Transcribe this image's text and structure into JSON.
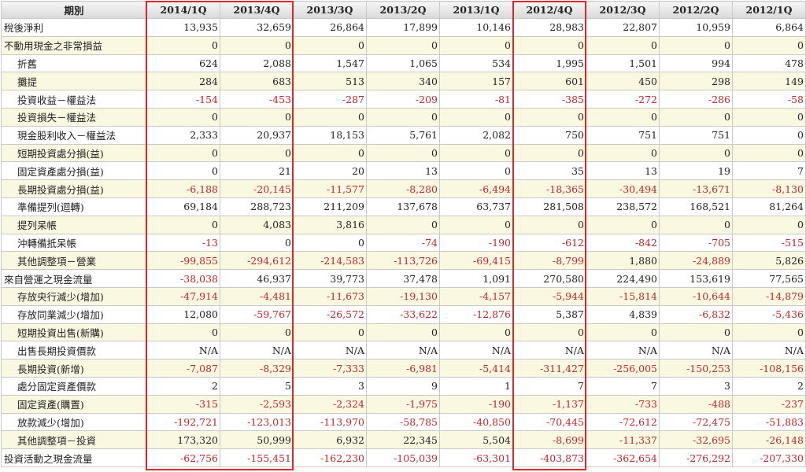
{
  "header": {
    "label": "期別",
    "periods": [
      "2014/1Q",
      "2013/4Q",
      "2013/3Q",
      "2013/2Q",
      "2013/1Q",
      "2012/4Q",
      "2012/3Q",
      "2012/2Q",
      "2012/1Q"
    ]
  },
  "rows": [
    {
      "label": "稅後淨利",
      "indent": false,
      "values": [
        "13,935",
        "32,659",
        "26,864",
        "17,899",
        "10,146",
        "28,983",
        "22,807",
        "10,959",
        "6,864"
      ]
    },
    {
      "label": "不動用現金之非常損益",
      "indent": false,
      "values": [
        "0",
        "0",
        "0",
        "0",
        "0",
        "0",
        "0",
        "0",
        "0"
      ]
    },
    {
      "label": "折舊",
      "indent": true,
      "values": [
        "624",
        "2,088",
        "1,547",
        "1,065",
        "534",
        "1,995",
        "1,501",
        "994",
        "478"
      ]
    },
    {
      "label": "攤提",
      "indent": true,
      "values": [
        "284",
        "683",
        "513",
        "340",
        "157",
        "601",
        "450",
        "298",
        "149"
      ]
    },
    {
      "label": "投資收益－權益法",
      "indent": true,
      "values": [
        "-154",
        "-453",
        "-287",
        "-209",
        "-81",
        "-385",
        "-272",
        "-286",
        "-58"
      ]
    },
    {
      "label": "投資損失－權益法",
      "indent": true,
      "values": [
        "0",
        "0",
        "0",
        "0",
        "0",
        "0",
        "0",
        "0",
        "0"
      ]
    },
    {
      "label": "現金股利收入－權益法",
      "indent": true,
      "values": [
        "2,333",
        "20,937",
        "18,153",
        "5,761",
        "2,082",
        "750",
        "751",
        "751",
        "0"
      ]
    },
    {
      "label": "短期投資處分損(益)",
      "indent": true,
      "values": [
        "0",
        "0",
        "0",
        "0",
        "0",
        "0",
        "0",
        "0",
        "0"
      ]
    },
    {
      "label": "固定資產處分損(益)",
      "indent": true,
      "values": [
        "0",
        "21",
        "20",
        "13",
        "0",
        "35",
        "13",
        "19",
        "7"
      ]
    },
    {
      "label": "長期投資處分損(益)",
      "indent": true,
      "values": [
        "-6,188",
        "-20,145",
        "-11,577",
        "-8,280",
        "-6,494",
        "-18,365",
        "-30,494",
        "-13,671",
        "-8,130"
      ]
    },
    {
      "label": "準備提列(迴轉)",
      "indent": true,
      "values": [
        "69,184",
        "288,723",
        "211,209",
        "137,678",
        "63,737",
        "281,508",
        "238,572",
        "168,521",
        "81,264"
      ]
    },
    {
      "label": "提列呆帳",
      "indent": true,
      "values": [
        "0",
        "4,083",
        "3,816",
        "0",
        "0",
        "0",
        "0",
        "0",
        "0"
      ]
    },
    {
      "label": "沖轉備抵呆帳",
      "indent": true,
      "values": [
        "-13",
        "0",
        "0",
        "-74",
        "-190",
        "-612",
        "-842",
        "-705",
        "-515"
      ]
    },
    {
      "label": "其他調整項－營業",
      "indent": true,
      "values": [
        "-99,855",
        "-294,612",
        "-214,583",
        "-113,726",
        "-69,415",
        "-8,799",
        "1,880",
        "-24,889",
        "5,826"
      ]
    },
    {
      "label": "來自營運之現金流量",
      "indent": false,
      "values": [
        "-38,038",
        "46,937",
        "39,773",
        "37,478",
        "1,091",
        "270,580",
        "224,490",
        "153,619",
        "77,565"
      ]
    },
    {
      "label": "存放央行減少(增加)",
      "indent": true,
      "values": [
        "-47,914",
        "-4,481",
        "-11,673",
        "-19,130",
        "-4,157",
        "-5,944",
        "-15,814",
        "-10,644",
        "-14,879"
      ]
    },
    {
      "label": "存放同業減少(增加)",
      "indent": true,
      "values": [
        "12,080",
        "-59,767",
        "-26,572",
        "-33,622",
        "-12,876",
        "5,387",
        "4,839",
        "-6,832",
        "-5,436"
      ]
    },
    {
      "label": "短期投資出售(新購)",
      "indent": true,
      "values": [
        "0",
        "0",
        "0",
        "0",
        "0",
        "0",
        "0",
        "0",
        "0"
      ]
    },
    {
      "label": "出售長期投資價款",
      "indent": true,
      "values": [
        "N/A",
        "N/A",
        "N/A",
        "N/A",
        "N/A",
        "N/A",
        "N/A",
        "N/A",
        "N/A"
      ]
    },
    {
      "label": "長期投資(新增)",
      "indent": true,
      "values": [
        "-7,087",
        "-8,329",
        "-7,333",
        "-6,981",
        "-5,414",
        "-311,427",
        "-256,005",
        "-150,253",
        "-108,156"
      ]
    },
    {
      "label": "處分固定資產價款",
      "indent": true,
      "values": [
        "2",
        "5",
        "3",
        "9",
        "1",
        "7",
        "7",
        "3",
        "2"
      ]
    },
    {
      "label": "固定資產(購置)",
      "indent": true,
      "values": [
        "-315",
        "-2,593",
        "-2,324",
        "-1,975",
        "-190",
        "-1,137",
        "-733",
        "-488",
        "-237"
      ]
    },
    {
      "label": "放款減少(增加)",
      "indent": true,
      "values": [
        "-192,721",
        "-123,013",
        "-113,970",
        "-58,785",
        "-40,850",
        "-70,445",
        "-72,612",
        "-72,475",
        "-51,883"
      ]
    },
    {
      "label": "其他調整項－投資",
      "indent": true,
      "values": [
        "173,320",
        "50,999",
        "6,932",
        "22,345",
        "5,504",
        "-8,699",
        "-11,337",
        "-32,695",
        "-26,148"
      ]
    },
    {
      "label": "投資活動之現金流量",
      "indent": false,
      "values": [
        "-62,756",
        "-155,451",
        "-162,230",
        "-105,039",
        "-63,301",
        "-403,873",
        "-362,654",
        "-276,292",
        "-207,330"
      ]
    }
  ],
  "colors": {
    "negative": "#c0262b",
    "highlight_box": "#e0252b",
    "shaded_row": "#fbf8e2"
  }
}
